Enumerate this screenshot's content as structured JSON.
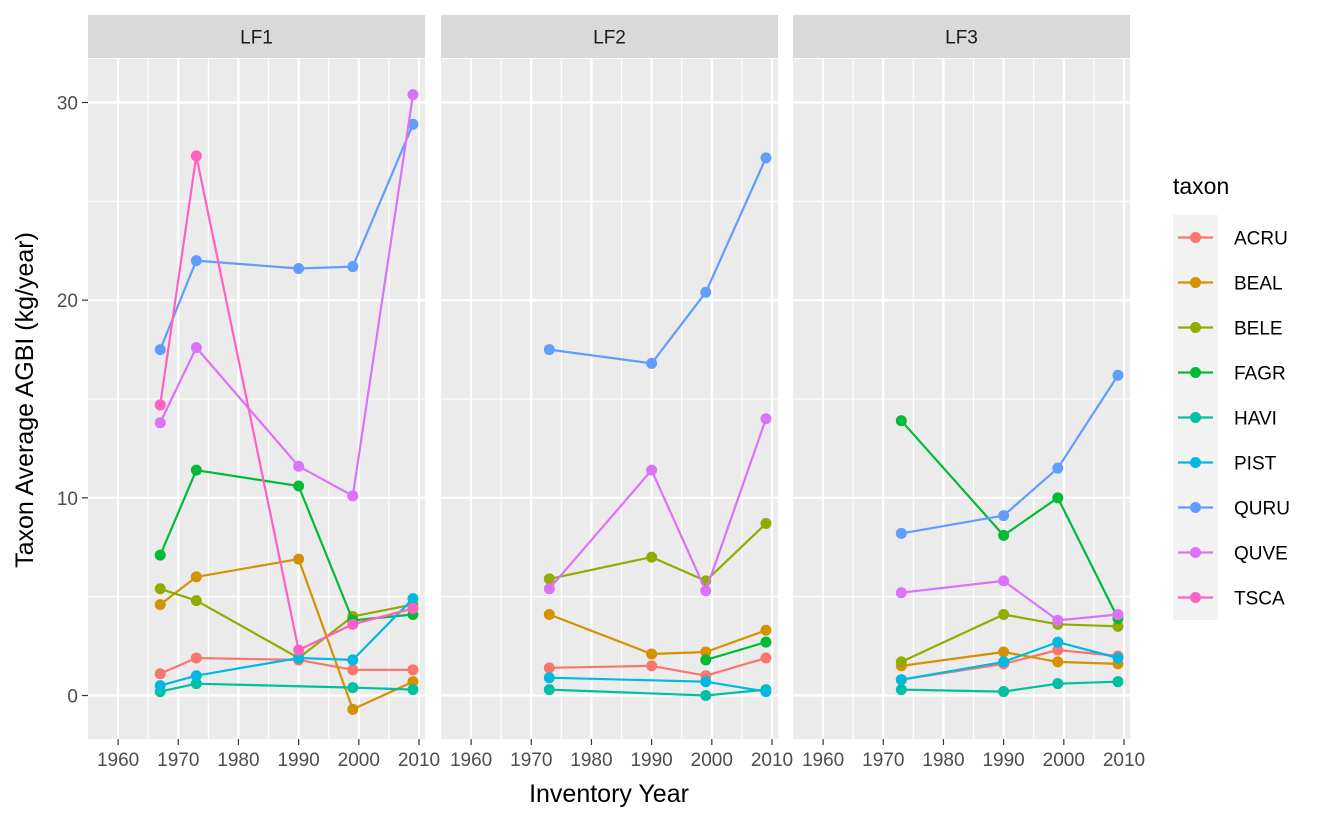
{
  "chart_data": {
    "type": "line",
    "xlabel": "Inventory Year",
    "ylabel": "Taxon Average AGBI (kg/year)",
    "xlim": [
      1955,
      2011
    ],
    "ylim": [
      -2.2,
      32.2
    ],
    "x_ticks": [
      1960,
      1970,
      1980,
      1990,
      2000,
      2010
    ],
    "x_tick_labels": [
      "1960",
      "1970",
      "1980",
      "1990",
      "2000",
      "2010"
    ],
    "y_ticks": [
      0,
      10,
      20,
      30
    ],
    "y_tick_labels": [
      "0",
      "10",
      "20",
      "30"
    ],
    "grid": true,
    "legend_title": "taxon",
    "legend_position": "right",
    "taxa": [
      "ACRU",
      "BEAL",
      "BELE",
      "FAGR",
      "HAVI",
      "PIST",
      "QURU",
      "QUVE",
      "TSCA"
    ],
    "colors": {
      "ACRU": "#F8766D",
      "BEAL": "#D39200",
      "BELE": "#93AA00",
      "FAGR": "#00BA38",
      "HAVI": "#00C19F",
      "PIST": "#00B9E3",
      "QURU": "#619CFF",
      "QUVE": "#DB72FB",
      "TSCA": "#FF61C3"
    },
    "panels": [
      {
        "label": "LF1",
        "series": [
          {
            "name": "ACRU",
            "x": [
              1967,
              1973,
              1990,
              1999,
              2009
            ],
            "y": [
              1.1,
              1.9,
              1.8,
              1.3,
              1.3
            ]
          },
          {
            "name": "BEAL",
            "x": [
              1967,
              1973,
              1990,
              1999,
              2009
            ],
            "y": [
              4.6,
              6.0,
              6.9,
              -0.7,
              0.7
            ]
          },
          {
            "name": "BELE",
            "x": [
              1967,
              1973,
              1990,
              1999,
              2009
            ],
            "y": [
              5.4,
              4.8,
              1.9,
              4.0,
              4.6
            ]
          },
          {
            "name": "FAGR",
            "x": [
              1967,
              1973,
              1990,
              1999,
              2009
            ],
            "y": [
              7.1,
              11.4,
              10.6,
              3.8,
              4.1
            ]
          },
          {
            "name": "HAVI",
            "x": [
              1967,
              1973,
              1999,
              2009
            ],
            "y": [
              0.2,
              0.6,
              0.4,
              0.3
            ]
          },
          {
            "name": "PIST",
            "x": [
              1967,
              1973,
              1990,
              1999,
              2009
            ],
            "y": [
              0.5,
              1.0,
              1.9,
              1.8,
              4.9
            ]
          },
          {
            "name": "QURU",
            "x": [
              1967,
              1973,
              1990,
              1999,
              2009
            ],
            "y": [
              17.5,
              22.0,
              21.6,
              21.7,
              28.9
            ]
          },
          {
            "name": "QUVE",
            "x": [
              1967,
              1973,
              1990,
              1999,
              2009
            ],
            "y": [
              13.8,
              17.6,
              11.6,
              10.1,
              30.4
            ]
          },
          {
            "name": "TSCA",
            "x": [
              1967,
              1973,
              1990,
              1999,
              2009
            ],
            "y": [
              14.7,
              27.3,
              2.3,
              3.6,
              4.4
            ]
          }
        ]
      },
      {
        "label": "LF2",
        "series": [
          {
            "name": "ACRU",
            "x": [
              1973,
              1990,
              1999,
              2009
            ],
            "y": [
              1.4,
              1.5,
              1.0,
              1.9
            ]
          },
          {
            "name": "BEAL",
            "x": [
              1973,
              1990,
              1999,
              2009
            ],
            "y": [
              4.1,
              2.1,
              2.2,
              3.3
            ]
          },
          {
            "name": "BELE",
            "x": [
              1973,
              1990,
              1999,
              2009
            ],
            "y": [
              5.9,
              7.0,
              5.8,
              8.7
            ]
          },
          {
            "name": "FAGR",
            "x": [
              1999,
              2009
            ],
            "y": [
              1.8,
              2.7
            ]
          },
          {
            "name": "HAVI",
            "x": [
              1973,
              1999,
              2009
            ],
            "y": [
              0.3,
              0.0,
              0.3
            ]
          },
          {
            "name": "PIST",
            "x": [
              1973,
              1999,
              2009
            ],
            "y": [
              0.9,
              0.7,
              0.2
            ]
          },
          {
            "name": "QURU",
            "x": [
              1973,
              1990,
              1999,
              2009
            ],
            "y": [
              17.5,
              16.8,
              20.4,
              27.2
            ]
          },
          {
            "name": "QUVE",
            "x": [
              1973,
              1990,
              1999,
              2009
            ],
            "y": [
              5.4,
              11.4,
              5.3,
              14.0
            ]
          }
        ]
      },
      {
        "label": "LF3",
        "series": [
          {
            "name": "ACRU",
            "x": [
              1973,
              1990,
              1999,
              2009
            ],
            "y": [
              0.8,
              1.6,
              2.3,
              2.0
            ]
          },
          {
            "name": "BEAL",
            "x": [
              1973,
              1990,
              1999,
              2009
            ],
            "y": [
              1.5,
              2.2,
              1.7,
              1.6
            ]
          },
          {
            "name": "BELE",
            "x": [
              1973,
              1990,
              1999,
              2009
            ],
            "y": [
              1.7,
              4.1,
              3.6,
              3.5
            ]
          },
          {
            "name": "FAGR",
            "x": [
              1973,
              1990,
              1999,
              2009
            ],
            "y": [
              13.9,
              8.1,
              10.0,
              3.9
            ]
          },
          {
            "name": "HAVI",
            "x": [
              1973,
              1990,
              1999,
              2009
            ],
            "y": [
              0.3,
              0.2,
              0.6,
              0.7
            ]
          },
          {
            "name": "PIST",
            "x": [
              1973,
              1990,
              1999,
              2009
            ],
            "y": [
              0.8,
              1.7,
              2.7,
              1.9
            ]
          },
          {
            "name": "QURU",
            "x": [
              1973,
              1990,
              1999,
              2009
            ],
            "y": [
              8.2,
              9.1,
              11.5,
              16.2
            ]
          },
          {
            "name": "QUVE",
            "x": [
              1973,
              1990,
              1999,
              2009
            ],
            "y": [
              5.2,
              5.8,
              3.8,
              4.1
            ]
          }
        ]
      }
    ]
  }
}
